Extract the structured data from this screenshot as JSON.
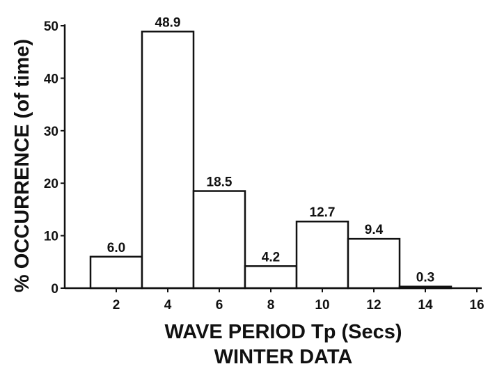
{
  "chart_data": {
    "type": "bar",
    "xlabel": "WAVE PERIOD Tp (Secs)",
    "subtitle": "WINTER DATA",
    "ylabel": "% OCCURRENCE (of time)",
    "xlim": [
      0,
      16
    ],
    "ylim": [
      0,
      50
    ],
    "x_ticks": [
      2,
      4,
      6,
      8,
      10,
      12,
      14,
      16
    ],
    "y_ticks": [
      0,
      10,
      20,
      30,
      40,
      50
    ],
    "bins": [
      {
        "x0": 1,
        "x1": 3,
        "value": 6.0,
        "label": "6.0"
      },
      {
        "x0": 3,
        "x1": 5,
        "value": 48.9,
        "label": "48.9"
      },
      {
        "x0": 5,
        "x1": 7,
        "value": 18.5,
        "label": "18.5"
      },
      {
        "x0": 7,
        "x1": 9,
        "value": 4.2,
        "label": "4.2"
      },
      {
        "x0": 9,
        "x1": 11,
        "value": 12.7,
        "label": "12.7"
      },
      {
        "x0": 11,
        "x1": 13,
        "value": 9.4,
        "label": "9.4"
      },
      {
        "x0": 13,
        "x1": 15,
        "value": 0.3,
        "label": "0.3"
      }
    ],
    "grid": false
  }
}
